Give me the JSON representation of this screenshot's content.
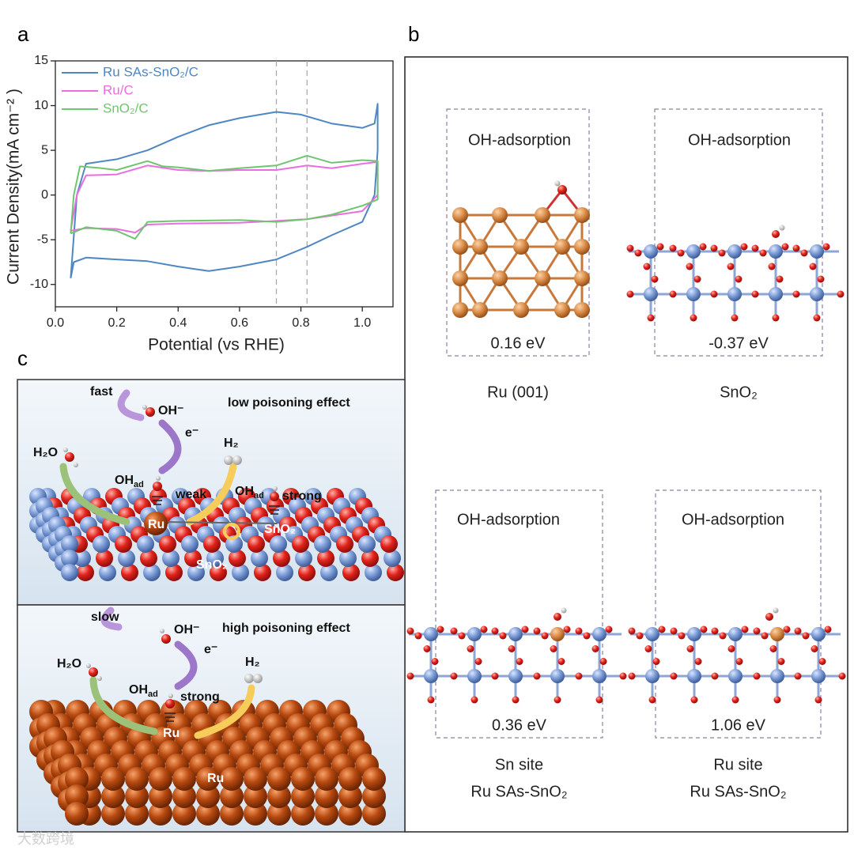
{
  "panel_labels": [
    "a",
    "b",
    "c"
  ],
  "chart_data": {
    "type": "line",
    "xlabel": "Potential (vs RHE)",
    "ylabel": "Current Density(mA cm⁻² )",
    "xlim": [
      0,
      1.1
    ],
    "xticks": [
      {
        "value": 0,
        "label": "0.0"
      },
      0.2,
      0.4,
      0.6,
      0.8,
      {
        "value": 1,
        "label": "1.0"
      }
    ],
    "ylim": [
      -12.5,
      15
    ],
    "yticks": [
      -10,
      -5,
      0,
      5,
      10,
      15
    ],
    "reference_lines": [
      0.72,
      0.82
    ],
    "legend": "upper left",
    "series": [
      {
        "name": "Ru SAs-SnO₂/C",
        "color": "#4e87c2",
        "x": [
          0.05,
          0.07,
          0.1,
          0.2,
          0.3,
          0.4,
          0.5,
          0.6,
          0.72,
          0.8,
          0.9,
          1.0,
          1.04,
          1.05,
          1.05,
          1.04,
          1.0,
          0.9,
          0.82,
          0.72,
          0.6,
          0.5,
          0.4,
          0.3,
          0.2,
          0.1,
          0.06,
          0.05
        ],
        "values": [
          -9.3,
          0,
          3.5,
          4,
          5,
          6.5,
          7.8,
          8.6,
          9.3,
          9,
          8,
          7.5,
          8,
          10.2,
          5,
          0,
          -3,
          -4.5,
          -5.8,
          -7.2,
          -8,
          -8.5,
          -8,
          -7.4,
          -7.2,
          -7,
          -7.5,
          -9.3
        ]
      },
      {
        "name": "Ru/C",
        "color": "#ea6ee0",
        "x": [
          0.05,
          0.07,
          0.1,
          0.2,
          0.3,
          0.4,
          0.5,
          0.6,
          0.72,
          0.82,
          0.9,
          1.0,
          1.05,
          1.05,
          1.0,
          0.9,
          0.82,
          0.72,
          0.6,
          0.4,
          0.3,
          0.26,
          0.2,
          0.1,
          0.05
        ],
        "values": [
          -4,
          0,
          2.2,
          2.3,
          3.3,
          2.8,
          2.7,
          2.8,
          2.8,
          3.3,
          3,
          3.5,
          3.7,
          0,
          -1.8,
          -2.3,
          -2.7,
          -2.9,
          -3.1,
          -3.2,
          -3.3,
          -4.2,
          -3.8,
          -3.7,
          -4
        ]
      },
      {
        "name": "SnO₂/C",
        "color": "#6fc56f",
        "x": [
          0.05,
          0.06,
          0.08,
          0.15,
          0.2,
          0.3,
          0.35,
          0.4,
          0.5,
          0.6,
          0.72,
          0.82,
          0.9,
          1.0,
          1.05,
          1.05,
          1.0,
          0.9,
          0.82,
          0.72,
          0.6,
          0.4,
          0.3,
          0.26,
          0.2,
          0.1,
          0.05
        ],
        "values": [
          -4.3,
          0,
          3.2,
          3,
          2.8,
          3.8,
          3.2,
          3.1,
          2.7,
          3,
          3.3,
          4.4,
          3.6,
          3.9,
          3.8,
          -0.5,
          -1.2,
          -2.2,
          -2.7,
          -3,
          -2.8,
          -2.9,
          -3,
          -4.9,
          -4,
          -3.6,
          -4.3
        ]
      }
    ]
  },
  "panel_b": {
    "cells": [
      {
        "header": "OH-adsorption",
        "energy": "0.16 eV",
        "caption": [
          "Ru (001)"
        ]
      },
      {
        "header": "OH-adsorption",
        "energy": "-0.37 eV",
        "caption": [
          "SnO₂"
        ]
      },
      {
        "header": "OH-adsorption",
        "energy": "0.36 eV",
        "caption": [
          "Sn site",
          "Ru SAs-SnO₂"
        ]
      },
      {
        "header": "OH-adsorption",
        "energy": "1.06 eV",
        "caption": [
          "Ru site",
          "Ru SAs-SnO₂"
        ]
      }
    ]
  },
  "panel_c": {
    "top": {
      "title": "low poisoning effect",
      "speed": "fast",
      "hydroxide": "OH⁻",
      "electron": "e⁻",
      "water": "H₂O",
      "hydrogen": "H₂",
      "oh_ad_ru": {
        "main": "OH",
        "sub": "ad"
      },
      "bond_ru": "weak",
      "oh_ad_sno2": {
        "main": "OH",
        "sub": "ad"
      },
      "bond_sno2": "strong",
      "ru_site": "Ru",
      "sno2_site": "SnO₂",
      "support": "SnO₂"
    },
    "bottom": {
      "title": "high poisoning effect",
      "speed": "slow",
      "hydroxide": "OH⁻",
      "electron": "e⁻",
      "water": "H₂O",
      "hydrogen": "H₂",
      "oh_ad": {
        "main": "OH",
        "sub": "ad"
      },
      "bond": "strong",
      "ru_site": "Ru",
      "support": "Ru"
    }
  },
  "watermark": "大数跨境"
}
